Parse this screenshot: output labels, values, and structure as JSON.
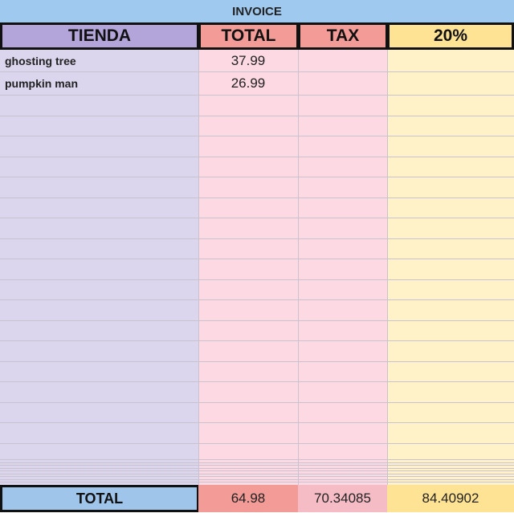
{
  "header": {
    "title": "INVOICE"
  },
  "table": {
    "columns": [
      "TIENDA",
      "TOTAL",
      "TAX",
      "20%"
    ],
    "rows": [
      [
        "ghosting tree",
        "37.99"
      ],
      [
        "pumpkin man",
        "26.99"
      ]
    ],
    "totals": {
      "label": "TOTAL",
      "values": [
        "64.98",
        "70.34085",
        "84.40902"
      ]
    }
  }
}
